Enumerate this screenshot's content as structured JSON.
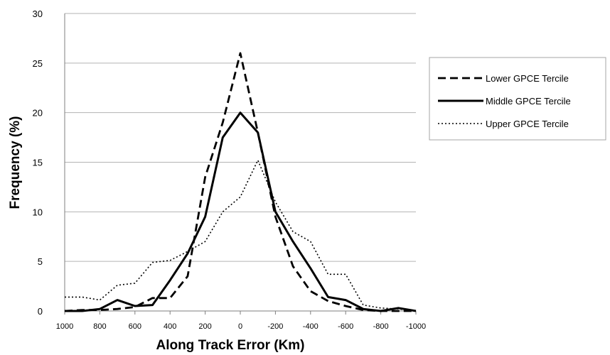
{
  "chart_data": {
    "type": "line",
    "title": "",
    "xlabel": "Along Track Error (Km)",
    "ylabel": "Frequency (%)",
    "xlim": [
      1000,
      -1000
    ],
    "ylim": [
      0,
      30
    ],
    "x_ticks": [
      "1000",
      "800",
      "600",
      "400",
      "200",
      "0",
      "-200",
      "-400",
      "-600",
      "-800",
      "-1000"
    ],
    "y_ticks": [
      "0",
      "5",
      "10",
      "15",
      "20",
      "25",
      "30"
    ],
    "grid": "horizontal",
    "legend_position": "right",
    "x": [
      1000,
      900,
      800,
      700,
      600,
      500,
      400,
      300,
      200,
      100,
      0,
      -100,
      -200,
      -300,
      -400,
      -500,
      -600,
      -700,
      -800,
      -900,
      -1000
    ],
    "series": [
      {
        "name": "Lower GPCE Tercile",
        "style": "dashed",
        "values": [
          0,
          0.1,
          0.1,
          0.2,
          0.4,
          1.3,
          1.3,
          3.5,
          13.5,
          19,
          26,
          18,
          9.5,
          4.5,
          2,
          1,
          0.5,
          0.1,
          0,
          0,
          0
        ]
      },
      {
        "name": "Middle GPCE Tercile",
        "style": "solid",
        "values": [
          0,
          0,
          0.2,
          1.1,
          0.5,
          0.6,
          3.1,
          5.8,
          9.5,
          17.5,
          20,
          18,
          10,
          7,
          4.3,
          1.4,
          1.1,
          0.2,
          0,
          0.3,
          0
        ]
      },
      {
        "name": "Upper GPCE Tercile",
        "style": "dotted",
        "values": [
          1.4,
          1.4,
          1.1,
          2.6,
          2.8,
          4.9,
          5.1,
          6,
          7,
          10,
          11.5,
          15.2,
          11,
          8,
          7,
          3.7,
          3.7,
          0.6,
          0.3,
          0.2,
          0
        ]
      }
    ],
    "colors": {
      "line": "#000000",
      "grid": "#b3b3b3",
      "axis": "#7f7f7f",
      "legend_border": "#a6a6a6"
    }
  }
}
